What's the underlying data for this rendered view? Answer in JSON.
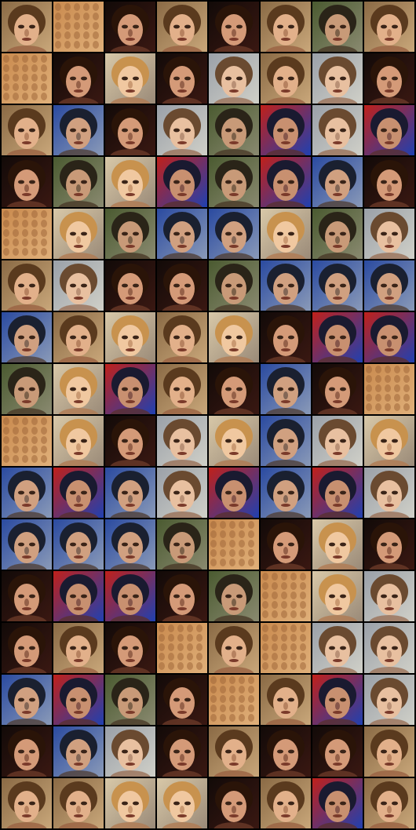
{
  "image": {
    "kind": "grid of generated face samples",
    "rows": 16,
    "cols": 8,
    "background_color": "#000000"
  },
  "palettes": {
    "warm": {
      "bg": "#8a6a45",
      "bg2": "#c9a77a",
      "hair": "#5a3a1e",
      "skin": "#e2b08a",
      "shade": "#9a6242"
    },
    "blond": {
      "bg": "#d8c8a8",
      "bg2": "#9a8a78",
      "hair": "#c8924e",
      "skin": "#f0c8a0",
      "shade": "#b07a52"
    },
    "dark": {
      "bg": "#120a08",
      "bg2": "#3a1812",
      "hair": "#2a1408",
      "skin": "#d49a78",
      "shade": "#6a3a28"
    },
    "redblue": {
      "bg": "#c0201a",
      "bg2": "#2040b0",
      "hair": "#1a1a30",
      "skin": "#c89070",
      "shade": "#5a3030"
    },
    "blue": {
      "bg": "#2a4aa0",
      "bg2": "#8a9ab8",
      "hair": "#1a2030",
      "skin": "#d0a080",
      "shade": "#504038"
    },
    "green": {
      "bg": "#4a5a30",
      "bg2": "#8a8a70",
      "hair": "#2a2418",
      "skin": "#c89a78",
      "shade": "#4a3a28"
    },
    "texture": {
      "bg": "#c98a4e",
      "bg2": "#e0b07a",
      "hair": "#b87a40",
      "skin": "#e8b888",
      "shade": "#a0683a"
    },
    "grey": {
      "bg": "#9aa0a8",
      "bg2": "#d0d0c8",
      "hair": "#6a4a30",
      "skin": "#e8c0a0",
      "shade": "#9a7058"
    }
  },
  "tiles": [
    [
      "warm",
      "texture",
      "dark",
      "warm",
      "dark",
      "warm",
      "green",
      "warm"
    ],
    [
      "texture",
      "dark",
      "blond",
      "dark",
      "grey",
      "warm",
      "grey",
      "dark"
    ],
    [
      "warm",
      "blue",
      "dark",
      "grey",
      "green",
      "redblue",
      "grey",
      "redblue"
    ],
    [
      "dark",
      "green",
      "blond",
      "redblue",
      "green",
      "redblue",
      "blue",
      "dark"
    ],
    [
      "texture",
      "blond",
      "green",
      "blue",
      "blue",
      "blond",
      "green",
      "grey"
    ],
    [
      "warm",
      "grey",
      "dark",
      "dark",
      "green",
      "blue",
      "blue",
      "blue"
    ],
    [
      "blue",
      "warm",
      "blond",
      "warm",
      "blond",
      "dark",
      "redblue",
      "redblue"
    ],
    [
      "green",
      "blond",
      "redblue",
      "warm",
      "dark",
      "blue",
      "dark",
      "texture"
    ],
    [
      "texture",
      "blond",
      "dark",
      "grey",
      "blond",
      "blue",
      "grey",
      "blond"
    ],
    [
      "blue",
      "redblue",
      "blue",
      "grey",
      "redblue",
      "blue",
      "redblue",
      "grey"
    ],
    [
      "blue",
      "blue",
      "blue",
      "green",
      "texture",
      "dark",
      "blond",
      "dark"
    ],
    [
      "dark",
      "redblue",
      "redblue",
      "dark",
      "green",
      "texture",
      "blond",
      "grey"
    ],
    [
      "dark",
      "warm",
      "dark",
      "texture",
      "warm",
      "texture",
      "grey",
      "grey"
    ],
    [
      "blue",
      "redblue",
      "green",
      "dark",
      "texture",
      "warm",
      "redblue",
      "grey"
    ],
    [
      "dark",
      "blue",
      "grey",
      "dark",
      "warm",
      "dark",
      "dark",
      "warm"
    ],
    [
      "warm",
      "warm",
      "blond",
      "blond",
      "dark",
      "warm",
      "redblue",
      "warm"
    ]
  ]
}
